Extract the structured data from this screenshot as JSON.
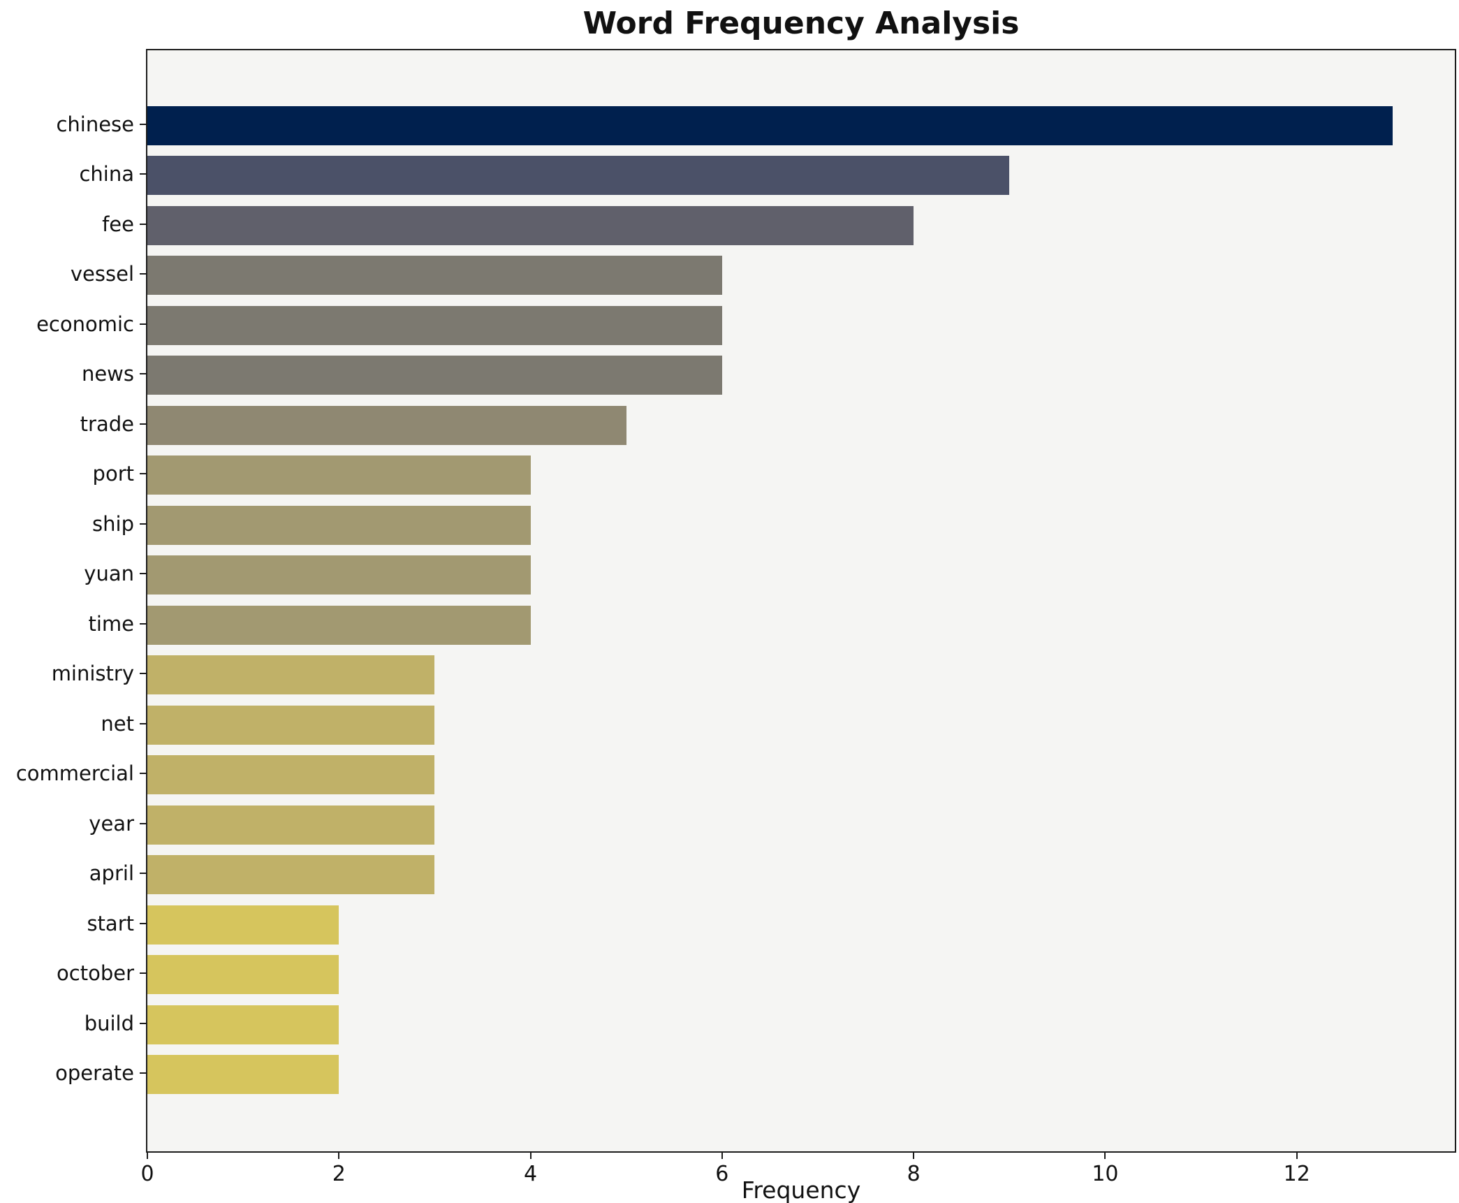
{
  "chart_data": {
    "type": "bar",
    "orientation": "horizontal",
    "title": "Word Frequency Analysis",
    "xlabel": "Frequency",
    "ylabel": "",
    "categories": [
      "chinese",
      "china",
      "fee",
      "vessel",
      "economic",
      "news",
      "trade",
      "port",
      "ship",
      "yuan",
      "time",
      "ministry",
      "net",
      "commercial",
      "year",
      "april",
      "start",
      "october",
      "build",
      "operate"
    ],
    "values": [
      13,
      9,
      8,
      6,
      6,
      6,
      5,
      4,
      4,
      4,
      4,
      3,
      3,
      3,
      3,
      3,
      2,
      2,
      2,
      2
    ],
    "colors": [
      "#00204e",
      "#4b5168",
      "#60606b",
      "#7c7970",
      "#7c7970",
      "#7c7970",
      "#8f8872",
      "#a29971",
      "#a29971",
      "#a29971",
      "#a29971",
      "#c0b168",
      "#c0b168",
      "#c0b168",
      "#c0b168",
      "#c0b168",
      "#d6c55d",
      "#d6c55d",
      "#d6c55d",
      "#d6c55d"
    ],
    "xlim": [
      0,
      13.65
    ],
    "xticks": [
      0,
      2,
      4,
      6,
      8,
      10,
      12
    ],
    "grid": false,
    "legend": false,
    "plot_bg": "#f5f5f3",
    "fig_bg": "#ffffff",
    "axis_color": "#1c1c1c"
  }
}
